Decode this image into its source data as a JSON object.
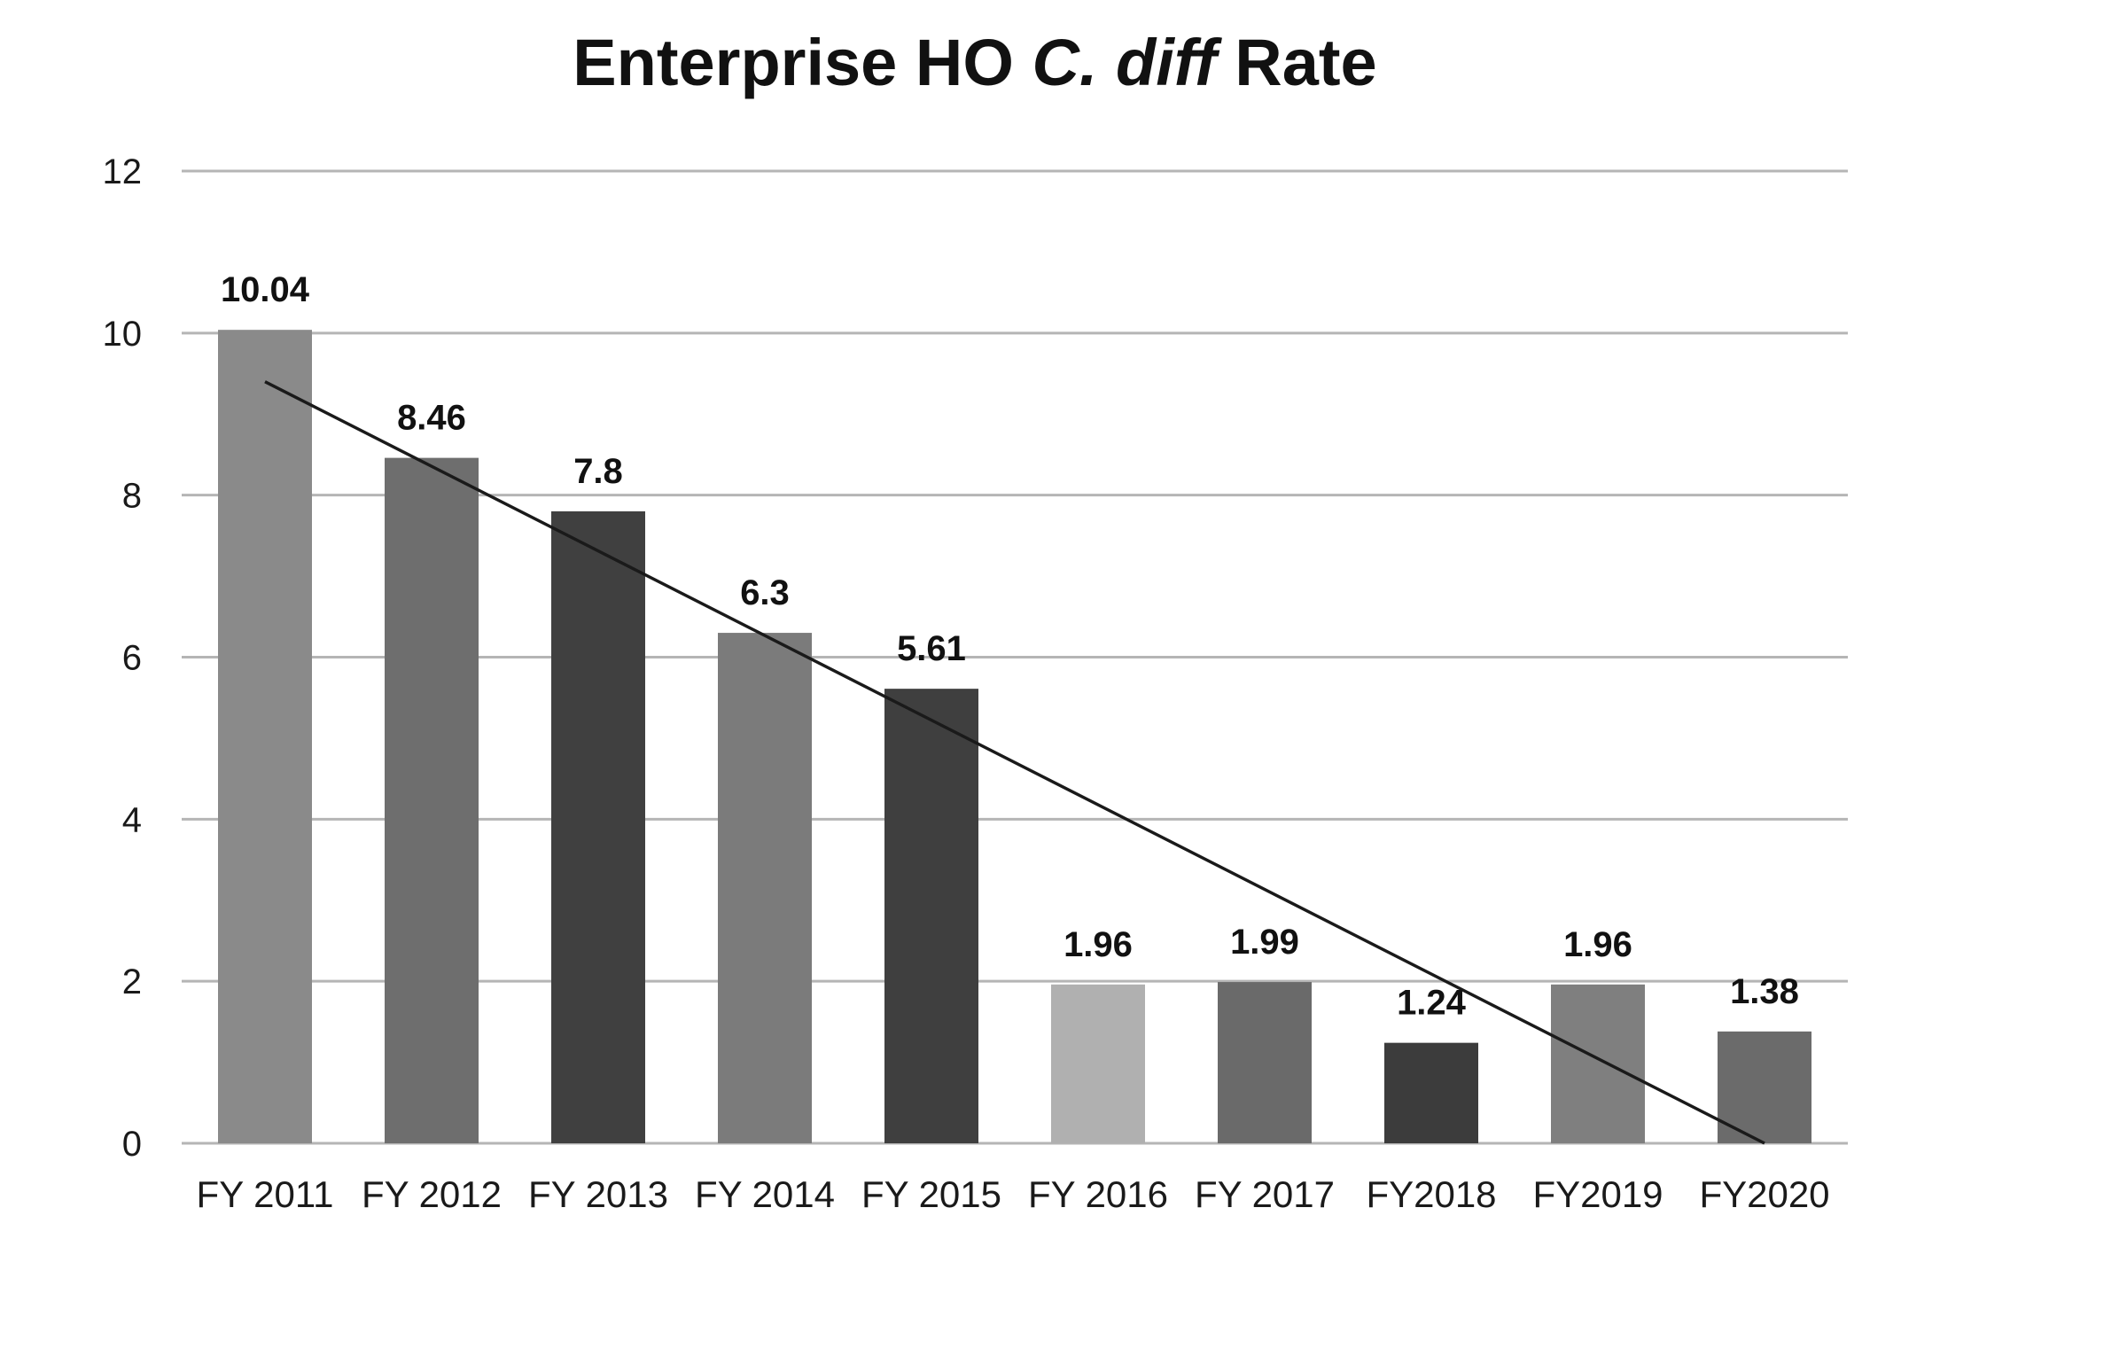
{
  "chart_data": {
    "type": "bar",
    "title": {
      "prefix": "Enterprise HO ",
      "italic": "C. diff",
      "suffix": " Rate"
    },
    "xlabel": "",
    "ylabel": "",
    "ylim": [
      0,
      12
    ],
    "yticks": [
      "0",
      "2",
      "4",
      "6",
      "8",
      "10",
      "12"
    ],
    "grid": true,
    "legend": "none",
    "categories": [
      "FY 2011",
      "FY 2012",
      "FY 2013",
      "FY 2014",
      "FY 2015",
      "FY 2016",
      "FY 2017",
      "FY2018",
      "FY2019",
      "FY2020"
    ],
    "values": [
      10.04,
      8.46,
      7.8,
      6.3,
      5.61,
      1.96,
      1.99,
      1.24,
      1.96,
      1.38
    ],
    "value_labels": [
      "10.04",
      "8.46",
      "7.8",
      "6.3",
      "5.61",
      "1.96",
      "1.99",
      "1.24",
      "1.96",
      "1.38"
    ],
    "bar_colors": [
      "#8a8a8a",
      "#6e6e6e",
      "#404040",
      "#7b7b7b",
      "#3f3f3f",
      "#b0b0b0",
      "#6a6a6a",
      "#3c3c3c",
      "#7f7f7f",
      "#6b6b6b"
    ],
    "trendline": {
      "start": 9.4,
      "end": 0.0,
      "color": "#1a1a1a"
    },
    "grid_color": "#b5b5b5"
  }
}
